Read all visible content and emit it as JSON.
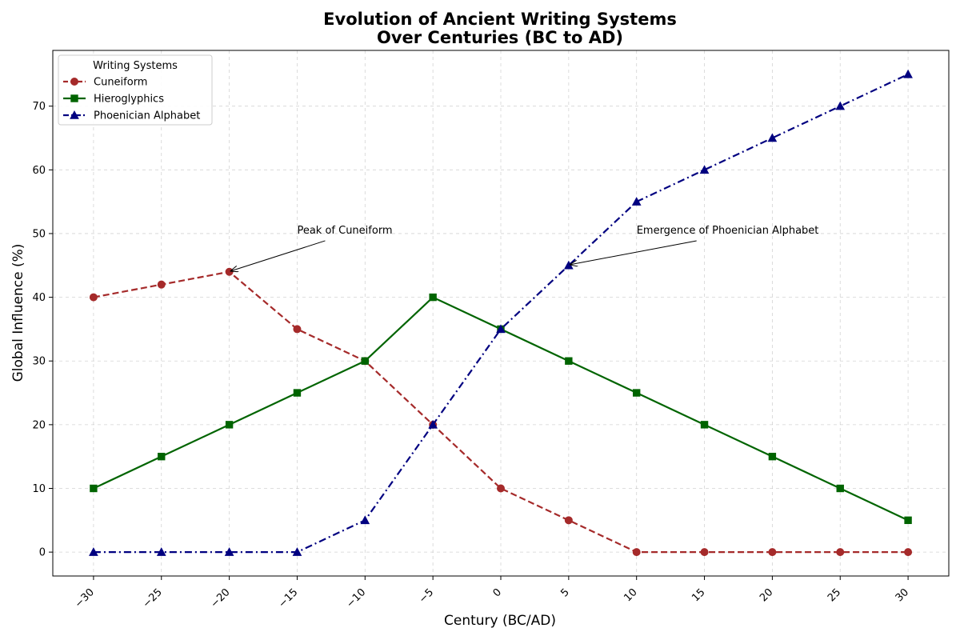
{
  "chart_data": {
    "type": "line",
    "title": [
      "Evolution of Ancient Writing Systems",
      "Over Centuries (BC to AD)"
    ],
    "xlabel": "Century (BC/AD)",
    "ylabel": "Global Influence (%)",
    "x": [
      -30,
      -25,
      -20,
      -15,
      -10,
      -5,
      0,
      5,
      10,
      15,
      20,
      25,
      30
    ],
    "x_tick_labels": [
      "−30",
      "−25",
      "−20",
      "−15",
      "−10",
      "−5",
      "0",
      "5",
      "10",
      "15",
      "20",
      "25",
      "30"
    ],
    "y_ticks": [
      0,
      10,
      20,
      30,
      40,
      50,
      60,
      70
    ],
    "xlim": [
      -33,
      33
    ],
    "ylim": [
      -3.75,
      78.75
    ],
    "grid": true,
    "legend": {
      "title": "Writing Systems",
      "position": "top-left"
    },
    "series": [
      {
        "name": "Cuneiform",
        "color": "#a52a2a",
        "marker": "circle",
        "line_style": "dashed",
        "values": [
          40,
          42,
          44,
          35,
          30,
          20,
          10,
          5,
          0,
          0,
          0,
          0,
          0
        ]
      },
      {
        "name": "Hieroglyphics",
        "color": "#006400",
        "marker": "square",
        "line_style": "solid",
        "values": [
          10,
          15,
          20,
          25,
          30,
          40,
          35,
          30,
          25,
          20,
          15,
          10,
          5
        ]
      },
      {
        "name": "Phoenician Alphabet",
        "color": "#000080",
        "marker": "triangle",
        "line_style": "dashdot",
        "values": [
          0,
          0,
          0,
          0,
          5,
          20,
          35,
          45,
          55,
          60,
          65,
          70,
          75
        ]
      }
    ],
    "annotations": [
      {
        "text": "Peak of Cuneiform",
        "point": [
          -20,
          44
        ],
        "text_at": [
          -15,
          50
        ]
      },
      {
        "text": "Emergence of Phoenician Alphabet",
        "point": [
          5,
          45
        ],
        "text_at": [
          10,
          50
        ]
      }
    ]
  }
}
